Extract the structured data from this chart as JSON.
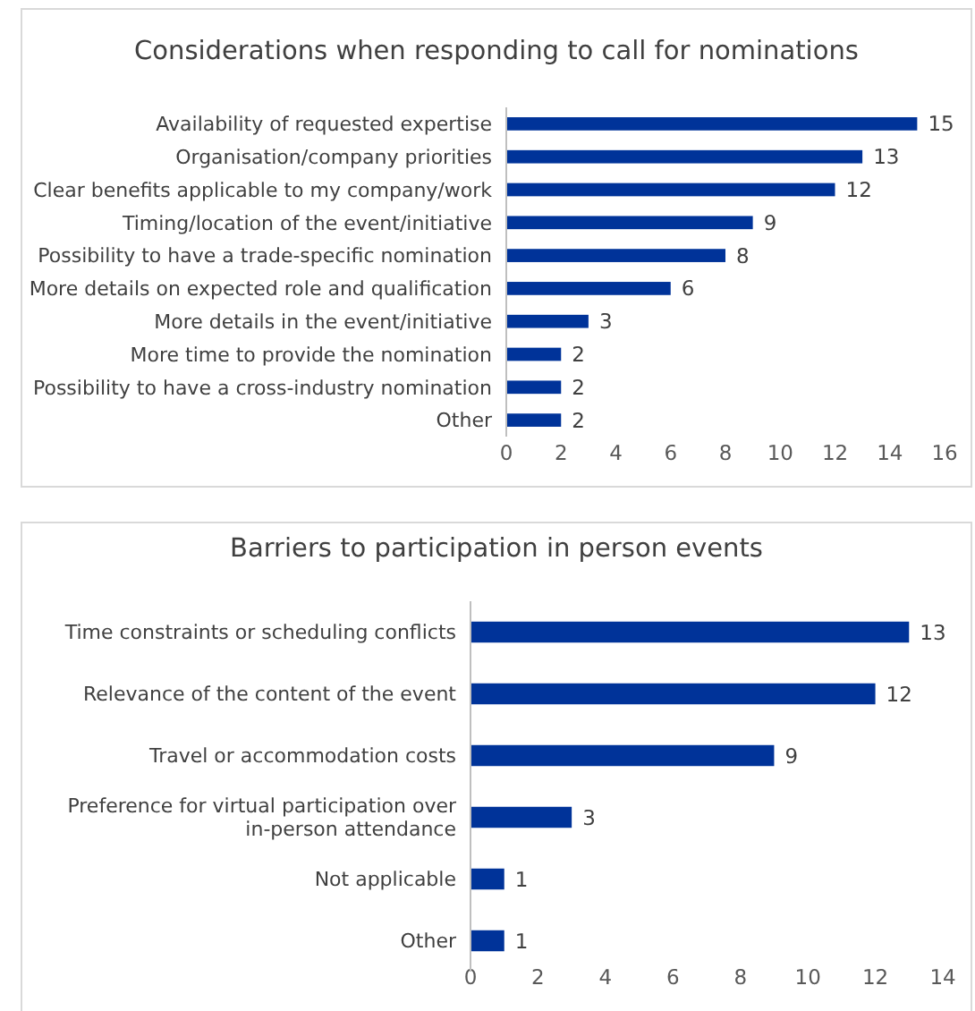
{
  "chart_data": [
    {
      "type": "bar",
      "orientation": "horizontal",
      "title": "Considerations when responding to call for nominations",
      "categories": [
        "Availability of requested expertise",
        "Organisation/company priorities",
        "Clear benefits applicable to my company/work",
        "Timing/location of the event/initiative",
        "Possibility to have a trade-specific nomination",
        "More details on expected role and qualification",
        "More details in the event/initiative",
        "More time to provide the nomination",
        "Possibility to have a cross-industry nomination",
        "Other"
      ],
      "values": [
        15,
        13,
        12,
        9,
        8,
        6,
        3,
        2,
        2,
        2
      ],
      "color": "#003399",
      "xlim": [
        0,
        16
      ],
      "xticks": [
        0,
        2,
        4,
        6,
        8,
        10,
        12,
        14,
        16
      ],
      "data_labels": true,
      "grid": false
    },
    {
      "type": "bar",
      "orientation": "horizontal",
      "title": "Barriers to participation in person events",
      "categories": [
        "Time constraints or scheduling conflicts",
        "Relevance of the content of the event",
        "Travel or accommodation costs",
        "Preference for virtual participation over in-person attendance",
        "Not applicable",
        "Other"
      ],
      "values": [
        13,
        12,
        9,
        3,
        1,
        1
      ],
      "color": "#003399",
      "xlim": [
        0,
        14
      ],
      "xticks": [
        0,
        2,
        4,
        6,
        8,
        10,
        12,
        14
      ],
      "data_labels": true,
      "grid": false
    }
  ]
}
